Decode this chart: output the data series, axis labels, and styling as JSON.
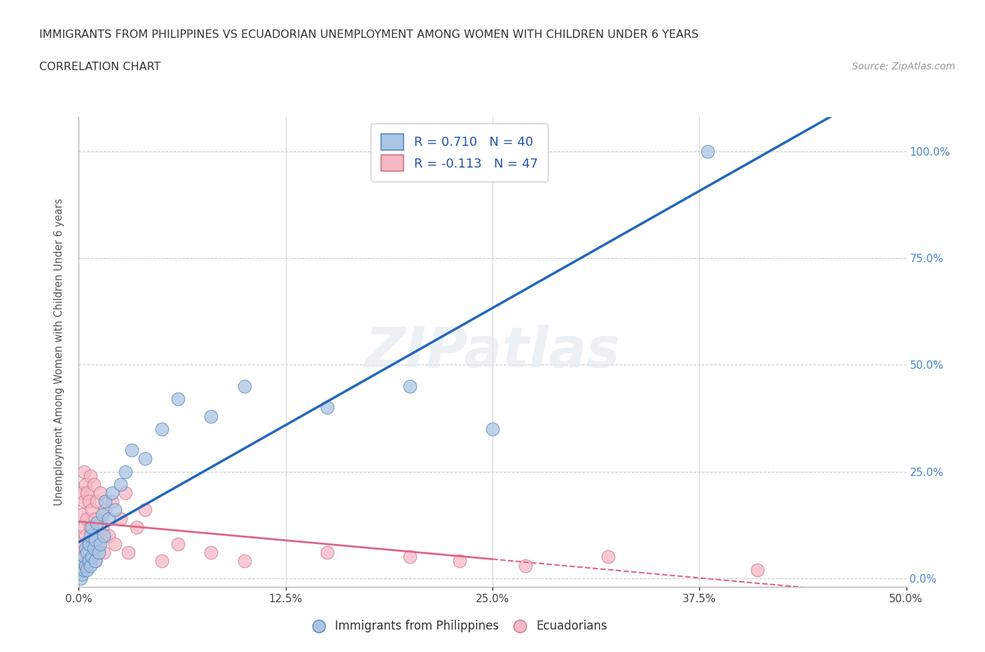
{
  "title": "IMMIGRANTS FROM PHILIPPINES VS ECUADORIAN UNEMPLOYMENT AMONG WOMEN WITH CHILDREN UNDER 6 YEARS",
  "subtitle": "CORRELATION CHART",
  "source": "Source: ZipAtlas.com",
  "ylabel": "Unemployment Among Women with Children Under 6 years",
  "xlim": [
    0.0,
    0.5
  ],
  "ylim": [
    -0.02,
    1.08
  ],
  "xtick_labels": [
    "0.0%",
    "12.5%",
    "25.0%",
    "37.5%",
    "50.0%"
  ],
  "xtick_vals": [
    0.0,
    0.125,
    0.25,
    0.375,
    0.5
  ],
  "ytick_labels": [
    "0.0%",
    "25.0%",
    "50.0%",
    "75.0%",
    "100.0%"
  ],
  "ytick_vals": [
    0.0,
    0.25,
    0.5,
    0.75,
    1.0
  ],
  "grid_color": "#cccccc",
  "background_color": "#ffffff",
  "watermark_text": "ZIPatlas",
  "philippines_color": "#aac4e4",
  "philippines_edge": "#5588bb",
  "ecuadorian_color": "#f5b8c4",
  "ecuadorian_edge": "#cc7788",
  "R_philippines": 0.71,
  "N_philippines": 40,
  "R_ecuadorian": -0.113,
  "N_ecuadorian": 47,
  "line_philippines_color": "#2266bb",
  "line_ecuadorian_color": "#dd6688",
  "legend_text_color": "#2255aa",
  "yaxis_color": "#4488cc",
  "philippines_x": [
    0.001,
    0.001,
    0.002,
    0.002,
    0.003,
    0.003,
    0.004,
    0.004,
    0.005,
    0.005,
    0.006,
    0.006,
    0.007,
    0.007,
    0.008,
    0.008,
    0.009,
    0.01,
    0.01,
    0.011,
    0.012,
    0.013,
    0.014,
    0.015,
    0.016,
    0.018,
    0.02,
    0.022,
    0.025,
    0.028,
    0.032,
    0.04,
    0.05,
    0.06,
    0.08,
    0.1,
    0.15,
    0.2,
    0.25,
    0.38
  ],
  "philippines_y": [
    0.0,
    0.02,
    0.01,
    0.03,
    0.02,
    0.05,
    0.03,
    0.07,
    0.02,
    0.06,
    0.04,
    0.08,
    0.03,
    0.1,
    0.05,
    0.12,
    0.07,
    0.04,
    0.09,
    0.13,
    0.06,
    0.08,
    0.15,
    0.1,
    0.18,
    0.14,
    0.2,
    0.16,
    0.22,
    0.25,
    0.3,
    0.28,
    0.35,
    0.42,
    0.38,
    0.45,
    0.4,
    0.45,
    0.35,
    1.0
  ],
  "ecuadorian_x": [
    0.001,
    0.001,
    0.002,
    0.002,
    0.002,
    0.003,
    0.003,
    0.003,
    0.004,
    0.004,
    0.005,
    0.005,
    0.005,
    0.006,
    0.006,
    0.007,
    0.007,
    0.008,
    0.008,
    0.009,
    0.009,
    0.01,
    0.01,
    0.011,
    0.012,
    0.013,
    0.014,
    0.015,
    0.016,
    0.018,
    0.02,
    0.022,
    0.025,
    0.028,
    0.03,
    0.035,
    0.04,
    0.05,
    0.06,
    0.08,
    0.1,
    0.15,
    0.2,
    0.23,
    0.27,
    0.32,
    0.41
  ],
  "ecuadorian_y": [
    0.05,
    0.08,
    0.15,
    0.2,
    0.06,
    0.12,
    0.18,
    0.25,
    0.1,
    0.22,
    0.04,
    0.14,
    0.2,
    0.08,
    0.18,
    0.12,
    0.24,
    0.06,
    0.16,
    0.1,
    0.22,
    0.04,
    0.14,
    0.18,
    0.08,
    0.2,
    0.12,
    0.06,
    0.16,
    0.1,
    0.18,
    0.08,
    0.14,
    0.2,
    0.06,
    0.12,
    0.16,
    0.04,
    0.08,
    0.06,
    0.04,
    0.06,
    0.05,
    0.04,
    0.03,
    0.05,
    0.02
  ]
}
